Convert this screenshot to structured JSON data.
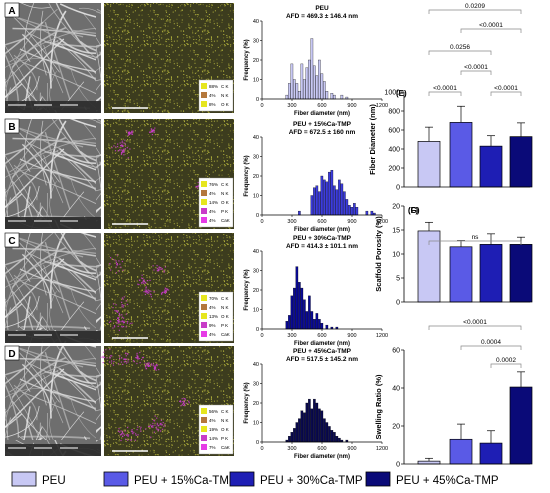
{
  "colors": {
    "peu": "#c8c8f4",
    "ca15": "#5a5ae6",
    "ca30": "#1e1eb4",
    "ca45": "#0a0a78",
    "sem_bg": "#6e6e6e",
    "eds_bg": "#3c3c1e",
    "eds_dot": "#b4b43c",
    "eds_pink": "#c83cc8",
    "hist_fill": "#c8c8f4"
  },
  "rows": [
    {
      "letter": "A",
      "legend": [
        {
          "pct": "88%",
          "el": "C K",
          "color": "#e6e61e"
        },
        {
          "pct": "4%",
          "el": "N K",
          "color": "#b4783c"
        },
        {
          "pct": "8%",
          "el": "O K",
          "color": "#e6e61e"
        }
      ],
      "hist": {
        "title": "PEU",
        "afd": "AFD = 469.3 ± 146.4 nm",
        "fill": "#c8c8f4",
        "bins": [
          [
            250,
            2
          ],
          [
            275,
            8
          ],
          [
            300,
            18
          ],
          [
            325,
            10
          ],
          [
            350,
            8
          ],
          [
            375,
            4
          ],
          [
            400,
            18
          ],
          [
            425,
            10
          ],
          [
            450,
            16
          ],
          [
            475,
            20
          ],
          [
            500,
            31
          ],
          [
            525,
            17
          ],
          [
            550,
            12
          ],
          [
            575,
            20
          ],
          [
            600,
            13
          ],
          [
            625,
            9
          ],
          [
            650,
            4
          ],
          [
            700,
            3
          ],
          [
            725,
            2
          ],
          [
            800,
            2
          ],
          [
            850,
            1
          ]
        ]
      }
    },
    {
      "letter": "B",
      "legend": [
        {
          "pct": "76%",
          "el": "C K",
          "color": "#e6e61e"
        },
        {
          "pct": "4%",
          "el": "N K",
          "color": "#b4783c"
        },
        {
          "pct": "14%",
          "el": "O K",
          "color": "#e6e61e"
        },
        {
          "pct": "4%",
          "el": "P K",
          "color": "#c83cc8"
        },
        {
          "pct": "4%",
          "el": "CaK",
          "color": "#e63ce6"
        }
      ],
      "hist": {
        "title": "PEU + 15%Ca-TMP",
        "afd": "AFD = 672.5 ± 160 nm",
        "fill": "#3c3cdc",
        "bins": [
          [
            375,
            2
          ],
          [
            500,
            10
          ],
          [
            525,
            14
          ],
          [
            550,
            15
          ],
          [
            575,
            12
          ],
          [
            600,
            20
          ],
          [
            625,
            18
          ],
          [
            650,
            17
          ],
          [
            675,
            22
          ],
          [
            700,
            23
          ],
          [
            725,
            15
          ],
          [
            750,
            13
          ],
          [
            775,
            18
          ],
          [
            800,
            16
          ],
          [
            825,
            12
          ],
          [
            850,
            8
          ],
          [
            875,
            5
          ],
          [
            900,
            4
          ],
          [
            925,
            6
          ],
          [
            950,
            4
          ],
          [
            1050,
            2
          ],
          [
            1100,
            2
          ],
          [
            1125,
            1
          ]
        ]
      }
    },
    {
      "letter": "C",
      "legend": [
        {
          "pct": "70%",
          "el": "C K",
          "color": "#e6e61e"
        },
        {
          "pct": "4%",
          "el": "N K",
          "color": "#b4783c"
        },
        {
          "pct": "13%",
          "el": "O K",
          "color": "#e6e61e"
        },
        {
          "pct": "9%",
          "el": "P K",
          "color": "#c83cc8"
        },
        {
          "pct": "4%",
          "el": "CaK",
          "color": "#e63ce6"
        }
      ],
      "hist": {
        "title": "PEU + 30%Ca-TMP",
        "afd": "AFD = 414.3 ± 101.1 nm",
        "fill": "#0a0a96",
        "bins": [
          [
            250,
            4
          ],
          [
            275,
            7
          ],
          [
            300,
            17
          ],
          [
            325,
            21
          ],
          [
            350,
            32
          ],
          [
            375,
            24
          ],
          [
            400,
            21
          ],
          [
            425,
            15
          ],
          [
            450,
            9
          ],
          [
            475,
            17
          ],
          [
            500,
            9
          ],
          [
            525,
            5
          ],
          [
            550,
            8
          ],
          [
            575,
            5
          ],
          [
            600,
            3
          ],
          [
            650,
            2
          ],
          [
            700,
            1
          ],
          [
            750,
            1
          ]
        ]
      }
    },
    {
      "letter": "D",
      "legend": [
        {
          "pct": "56%",
          "el": "C K",
          "color": "#e6e61e"
        },
        {
          "pct": "4%",
          "el": "N K",
          "color": "#b4783c"
        },
        {
          "pct": "19%",
          "el": "O K",
          "color": "#e6e61e"
        },
        {
          "pct": "14%",
          "el": "P K",
          "color": "#c83cc8"
        },
        {
          "pct": "7%",
          "el": "CaK",
          "color": "#e63ce6"
        }
      ],
      "hist": {
        "title": "PEU + 45%Ca-TMP",
        "afd": "AFD = 517.5 ± 145.2 nm",
        "fill": "#0a0a50",
        "bins": [
          [
            250,
            1
          ],
          [
            275,
            3
          ],
          [
            300,
            5
          ],
          [
            325,
            7
          ],
          [
            350,
            10
          ],
          [
            375,
            12
          ],
          [
            400,
            16
          ],
          [
            425,
            15
          ],
          [
            450,
            20
          ],
          [
            475,
            22
          ],
          [
            500,
            17
          ],
          [
            525,
            22
          ],
          [
            550,
            20
          ],
          [
            575,
            17
          ],
          [
            600,
            16
          ],
          [
            625,
            12
          ],
          [
            650,
            10
          ],
          [
            675,
            8
          ],
          [
            700,
            6
          ],
          [
            725,
            5
          ],
          [
            750,
            3
          ],
          [
            775,
            2
          ],
          [
            800,
            1
          ],
          [
            850,
            1
          ]
        ]
      }
    }
  ],
  "hist_axes": {
    "xlabel": "Fiber diameter (nm)",
    "ylabel": "Frequency (%)",
    "xticks": [
      "0",
      "300",
      "600",
      "900",
      "1200"
    ],
    "yticks": [
      "0",
      "10",
      "20",
      "30",
      "40"
    ],
    "xlim": [
      0,
      1200
    ],
    "ylim": [
      0,
      40
    ]
  },
  "chart_data": [
    {
      "type": "bar",
      "panel": "(E)",
      "ylabel": "Fiber  Diameter (nm)",
      "ylim": [
        0,
        1000
      ],
      "yticks": [
        "0",
        "200",
        "400",
        "600",
        "800",
        "1000"
      ],
      "categories": [
        "PEU",
        "PEU + 15%Ca-TMP",
        "PEU + 30%Ca-TMP",
        "PEU + 45%Ca-TMP"
      ],
      "values": [
        480,
        680,
        430,
        530
      ],
      "errors": [
        150,
        170,
        110,
        145
      ],
      "brackets": [
        {
          "a": 0,
          "b": 3,
          "label": "0.0209"
        },
        {
          "a": 1,
          "b": 3,
          "label": "<0.0001"
        },
        {
          "a": 0,
          "b": 2,
          "label": "0.0256"
        },
        {
          "a": 1,
          "b": 2,
          "label": "<0.0001"
        },
        {
          "a": 0,
          "b": 1,
          "label": "<0.0001"
        },
        {
          "a": 2,
          "b": 3,
          "label": "<0.0001"
        }
      ]
    },
    {
      "type": "bar",
      "panel": "(F)",
      "ylabel": "Scaffold Porosity (%)",
      "ylim": [
        0,
        20
      ],
      "yticks": [
        "0",
        "5",
        "10",
        "15",
        "20"
      ],
      "categories": [
        "PEU",
        "PEU + 15%Ca-TMP",
        "PEU + 30%Ca-TMP",
        "PEU + 45%Ca-TMP"
      ],
      "values": [
        14.8,
        11.5,
        12.0,
        12.0
      ],
      "errors": [
        1.8,
        1.3,
        2.2,
        1.5
      ],
      "brackets": [
        {
          "a": 0,
          "b": 3,
          "label": "ns"
        }
      ]
    },
    {
      "type": "bar",
      "panel": "(G)",
      "ylabel": "Swelling Ratio (%)",
      "ylim": [
        0,
        60
      ],
      "yticks": [
        "0",
        "20",
        "40",
        "60"
      ],
      "categories": [
        "PEU",
        "PEU + 15%Ca-TMP",
        "PEU + 30%Ca-TMP",
        "PEU + 45%Ca-TMP"
      ],
      "values": [
        1.5,
        13,
        11,
        40.5
      ],
      "errors": [
        1.5,
        8,
        6.5,
        8
      ],
      "brackets": [
        {
          "a": 0,
          "b": 3,
          "label": "<0.0001"
        },
        {
          "a": 1,
          "b": 3,
          "label": "0.0004"
        },
        {
          "a": 2,
          "b": 3,
          "label": "0.0002"
        }
      ]
    }
  ],
  "legend": [
    {
      "label": "PEU",
      "color": "#c8c8f4"
    },
    {
      "label": "PEU + 15%Ca-TMP",
      "color": "#5a5ae6"
    },
    {
      "label": "PEU + 30%Ca-TMP",
      "color": "#1e1eb4"
    },
    {
      "label": "PEU + 45%Ca-TMP",
      "color": "#0a0a78"
    }
  ]
}
